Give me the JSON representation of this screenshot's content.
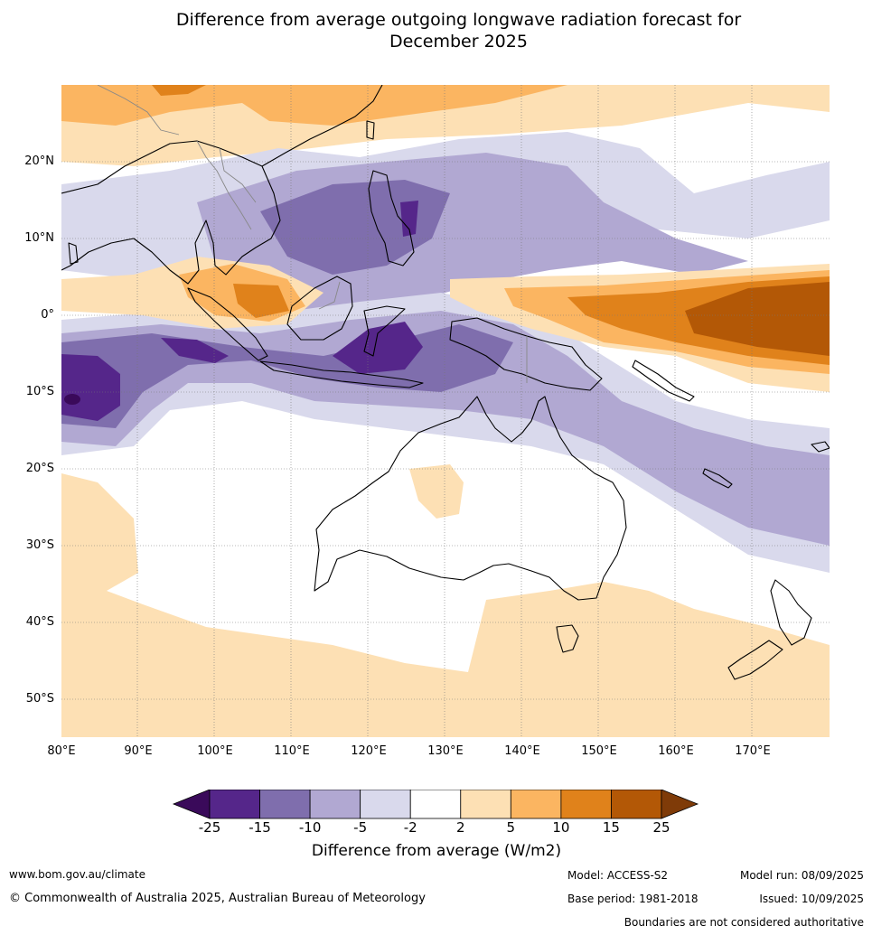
{
  "title_line1": "Difference from average outgoing longwave radiation forecast for",
  "title_line2": "December 2025",
  "map": {
    "lat_labels": [
      "20°N",
      "10°N",
      "0°",
      "10°S",
      "20°S",
      "30°S",
      "40°S",
      "50°S"
    ],
    "lon_labels": [
      "80°E",
      "90°E",
      "100°E",
      "110°E",
      "120°E",
      "130°E",
      "140°E",
      "150°E",
      "160°E",
      "170°E"
    ],
    "extent": {
      "lon_min": 80,
      "lon_max": 180,
      "lat_min": -55,
      "lat_max": 30
    }
  },
  "legend": {
    "ticks": [
      "-25",
      "-15",
      "-10",
      "-5",
      "-2",
      "2",
      "5",
      "10",
      "15",
      "25"
    ],
    "colors": [
      "#3a0a5a",
      "#55268a",
      "#7f6ead",
      "#b1a8d2",
      "#d9d9ec",
      "#ffffff",
      "#fde0b4",
      "#fbb561",
      "#e0821b",
      "#b35806",
      "#7f3b08"
    ],
    "label": "Difference from average (W/m2)"
  },
  "footer": {
    "website": "www.bom.gov.au/climate",
    "copyright": "© Commonwealth of Australia 2025, Australian Bureau of Meteorology",
    "model": "Model: ACCESS-S2",
    "model_run": "Model run: 08/09/2025",
    "base_period": "Base period: 1981-2018",
    "issued": "Issued: 10/09/2025",
    "boundaries": "Boundaries are not considered authoritative"
  }
}
